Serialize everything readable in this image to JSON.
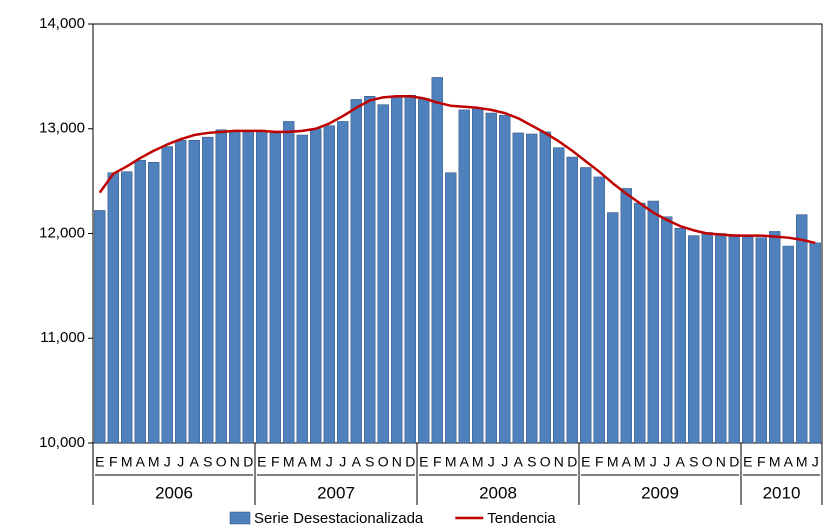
{
  "chart_data": {
    "type": "bar-line",
    "categories": [
      "E",
      "F",
      "M",
      "A",
      "M",
      "J",
      "J",
      "A",
      "S",
      "O",
      "N",
      "D",
      "E",
      "F",
      "M",
      "A",
      "M",
      "J",
      "J",
      "A",
      "S",
      "O",
      "N",
      "D",
      "E",
      "F",
      "M",
      "A",
      "M",
      "J",
      "J",
      "A",
      "S",
      "O",
      "N",
      "D",
      "E",
      "F",
      "M",
      "A",
      "M",
      "J",
      "J",
      "A",
      "S",
      "O",
      "N",
      "D",
      "E",
      "F",
      "M",
      "A",
      "M",
      "J"
    ],
    "groups": [
      {
        "label": "2006",
        "count": 12
      },
      {
        "label": "2007",
        "count": 12
      },
      {
        "label": "2008",
        "count": 12
      },
      {
        "label": "2009",
        "count": 12
      },
      {
        "label": "2010",
        "count": 6
      }
    ],
    "series": [
      {
        "name": "Serie Desestacionalizada",
        "type": "bar",
        "color": "#4f81bd",
        "values": [
          12220,
          12580,
          12590,
          12700,
          12680,
          12830,
          12890,
          12890,
          12920,
          12990,
          12980,
          12980,
          12970,
          12960,
          13070,
          12940,
          13000,
          13030,
          13070,
          13280,
          13310,
          13230,
          13310,
          13320,
          13290,
          13490,
          12580,
          13180,
          13190,
          13150,
          13130,
          12960,
          12950,
          12970,
          12820,
          12730,
          12630,
          12540,
          12200,
          12430,
          12290,
          12310,
          12160,
          12050,
          11980,
          12010,
          12000,
          11990,
          11970,
          11960,
          12020,
          11880,
          12180,
          11910
        ]
      },
      {
        "name": "Tendencia",
        "type": "line",
        "color": "#c00000",
        "values": [
          12390,
          12570,
          12640,
          12720,
          12790,
          12850,
          12900,
          12940,
          12960,
          12970,
          12980,
          12980,
          12980,
          12970,
          12970,
          12980,
          13000,
          13050,
          13120,
          13200,
          13270,
          13300,
          13310,
          13310,
          13290,
          13250,
          13220,
          13210,
          13200,
          13180,
          13150,
          13100,
          13030,
          12960,
          12880,
          12790,
          12690,
          12590,
          12480,
          12380,
          12290,
          12200,
          12130,
          12070,
          12030,
          12000,
          11990,
          11980,
          11980,
          11980,
          11970,
          11960,
          11940,
          11910
        ]
      }
    ],
    "ylim": [
      10000,
      14000
    ],
    "yticks": [
      {
        "value": 10000,
        "label": "10,000"
      },
      {
        "value": 11000,
        "label": "11,000"
      },
      {
        "value": 12000,
        "label": "12,000"
      },
      {
        "value": 13000,
        "label": "13,000"
      },
      {
        "value": 14000,
        "label": "14,000"
      }
    ],
    "legend": "bottom"
  }
}
